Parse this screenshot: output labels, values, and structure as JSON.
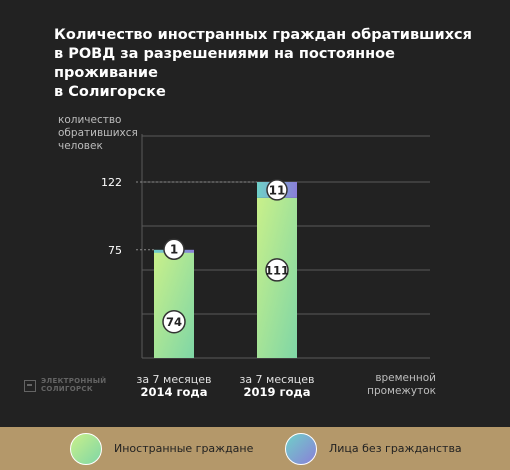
{
  "title": "Количество иностранных граждан обратившихся\nв РОВД за разрешениями на постоянное проживание\nв Солигорске",
  "logo": {
    "line1": "ЭЛЕКТРОННЫЙ",
    "line2": "СОЛИГОРСК"
  },
  "colors": {
    "background": "#222222",
    "foreigners_grad_top": "#c9f08a",
    "foreigners_grad_bottom": "#7fd6a6",
    "stateless_grad_left": "#6fd0c8",
    "stateless_grad_right": "#8a7fd8",
    "legend_bar": "#b4986a",
    "gridline": "#5a5a5a"
  },
  "chart_data": {
    "type": "bar",
    "stacked": true,
    "title": "Количество иностранных граждан обратившихся в РОВД за разрешениями на постоянное проживание в Солигорске",
    "ylabel": "количество\nобратившихся\nчеловек",
    "xlabel": "временной\nпромежуток",
    "categories": [
      {
        "line1": "за 7 месяцев",
        "line2": "2014 года"
      },
      {
        "line1": "за 7 месяцев",
        "line2": "2019 года"
      }
    ],
    "yticks": [
      75,
      122
    ],
    "ylim": [
      0,
      160
    ],
    "grid": true,
    "legend_position": "bottom",
    "series": [
      {
        "name": "Иностранные граждане",
        "values": [
          74,
          111
        ]
      },
      {
        "name": "Лица без гражданства",
        "values": [
          1,
          11
        ]
      }
    ],
    "totals": [
      75,
      122
    ]
  }
}
